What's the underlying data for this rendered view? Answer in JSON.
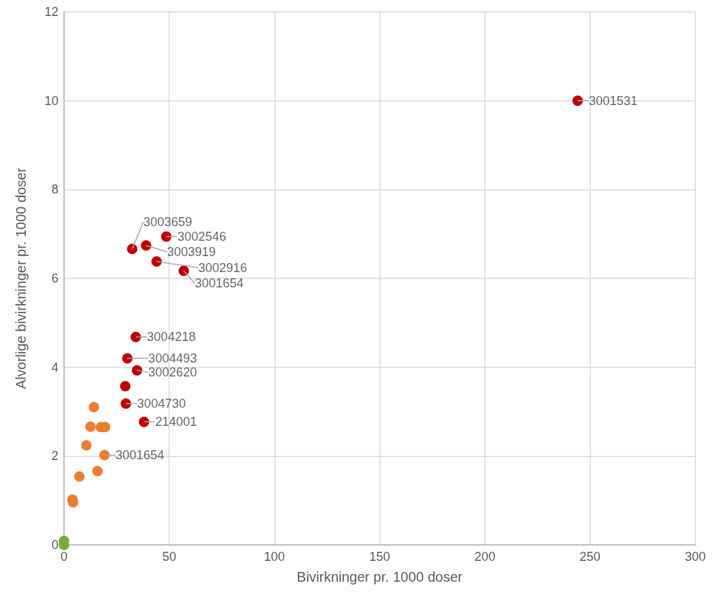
{
  "chart_data": {
    "type": "scatter",
    "xlabel": "Bivirkninger pr. 1000 doser",
    "ylabel": "Alvorlige bivirkninger pr. 1000 doser",
    "xlim": [
      0,
      300
    ],
    "xticks": [
      0,
      50,
      100,
      150,
      200,
      250,
      300
    ],
    "ylim": [
      0,
      12
    ],
    "yticks": [
      0,
      2,
      4,
      6,
      8,
      10,
      12
    ],
    "grid": true,
    "marker": "circle",
    "series": [
      {
        "color": "#c00000",
        "x": [
          244.1,
          48.6,
          39.0,
          32.4,
          44.0,
          56.9,
          34.1,
          30.1,
          34.7,
          29.1,
          29.4,
          38.0
        ],
        "values": [
          10.0,
          6.94,
          6.74,
          6.66,
          6.38,
          6.17,
          4.68,
          4.2,
          3.93,
          3.57,
          3.18,
          2.77
        ]
      },
      {
        "color": "#ed7d31",
        "x": [
          14.2,
          12.6,
          17.5,
          19.5,
          10.6,
          19.2,
          15.9,
          7.3,
          4.0,
          4.3
        ],
        "values": [
          3.1,
          2.66,
          2.65,
          2.65,
          2.24,
          2.02,
          1.66,
          1.54,
          1.02,
          0.96
        ]
      },
      {
        "color": "#70ad47",
        "x": [
          0,
          0
        ],
        "values": [
          0.09,
          0
        ]
      }
    ],
    "annotations": [
      {
        "text": "3001531",
        "x": 244.1,
        "y": 10.0
      },
      {
        "text": "3002546",
        "x": 48.6,
        "y": 6.94
      },
      {
        "text": "3003919",
        "x": 39.0,
        "y": 6.74
      },
      {
        "text": "3003659",
        "x": 32.4,
        "y": 6.66
      },
      {
        "text": "3002916",
        "x": 44.0,
        "y": 6.38
      },
      {
        "text": "3001654",
        "x": 56.9,
        "y": 6.17
      },
      {
        "text": "3004218",
        "x": 34.1,
        "y": 4.68
      },
      {
        "text": "3004493",
        "x": 30.1,
        "y": 4.2
      },
      {
        "text": "3002620",
        "x": 34.7,
        "y": 3.93
      },
      {
        "text": "3004730",
        "x": 29.4,
        "y": 3.18
      },
      {
        "text": "214001",
        "x": 38.0,
        "y": 2.77
      },
      {
        "text": "3001654",
        "x": 19.2,
        "y": 2.02
      }
    ]
  }
}
